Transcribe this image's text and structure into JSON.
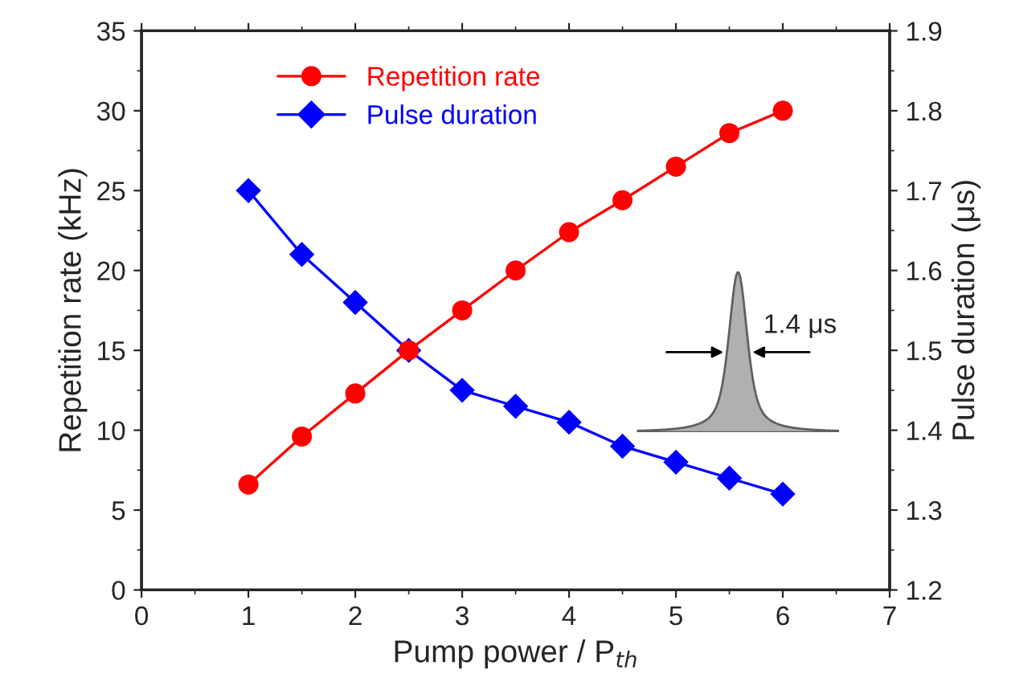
{
  "chart_data": {
    "type": "line",
    "xlabel": "Pump power / P$_{th}$",
    "ylabel": "Repetition rate (kHz)",
    "y2label": "Pulse duration (μs)",
    "x": [
      1,
      1.5,
      2,
      2.5,
      3,
      3.5,
      4,
      4.5,
      5,
      5.5,
      6
    ],
    "series": [
      {
        "name": "Repetition rate",
        "color": "#ff0000",
        "marker": "circle",
        "values": [
          6.6,
          9.6,
          12.3,
          15.0,
          17.5,
          20.0,
          22.4,
          24.4,
          26.5,
          28.6,
          30.0
        ]
      },
      {
        "name": "Pulse duration",
        "color": "#0000ff",
        "marker": "diamond",
        "axis": "y2",
        "values": [
          1.7,
          1.62,
          1.56,
          1.5,
          1.45,
          1.43,
          1.41,
          1.38,
          1.36,
          1.34,
          1.32
        ]
      }
    ],
    "xlim": [
      0,
      7
    ],
    "xticks": [
      0,
      1,
      2,
      3,
      4,
      5,
      6,
      7
    ],
    "ylim": [
      0,
      35
    ],
    "yticks": [
      0,
      5,
      10,
      15,
      20,
      25,
      30,
      35
    ],
    "y2lim": [
      1.2,
      1.9
    ],
    "y2ticks": [
      1.2,
      1.3,
      1.4,
      1.5,
      1.6,
      1.7,
      1.8,
      1.9
    ],
    "annotations": [
      "1.4 μs"
    ],
    "legend": "top left",
    "grid": false
  }
}
